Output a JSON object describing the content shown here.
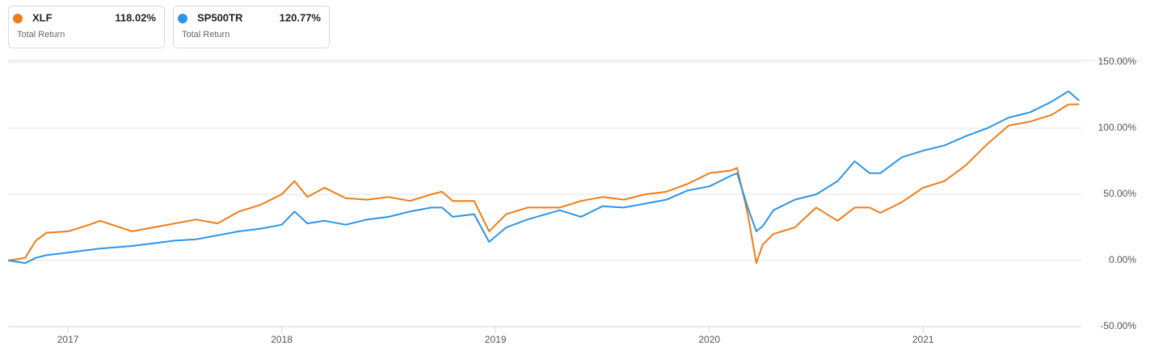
{
  "chart_data": {
    "type": "line",
    "x": [
      2016.72,
      2016.8,
      2016.85,
      2016.9,
      2017.0,
      2017.1,
      2017.15,
      2017.3,
      2017.4,
      2017.5,
      2017.6,
      2017.7,
      2017.8,
      2017.9,
      2018.0,
      2018.06,
      2018.12,
      2018.2,
      2018.3,
      2018.4,
      2018.5,
      2018.6,
      2018.7,
      2018.75,
      2018.8,
      2018.9,
      2018.97,
      2019.05,
      2019.15,
      2019.3,
      2019.4,
      2019.5,
      2019.6,
      2019.7,
      2019.8,
      2019.9,
      2020.0,
      2020.1,
      2020.13,
      2020.18,
      2020.22,
      2020.25,
      2020.3,
      2020.4,
      2020.5,
      2020.6,
      2020.68,
      2020.75,
      2020.8,
      2020.9,
      2021.0,
      2021.1,
      2021.2,
      2021.3,
      2021.4,
      2021.5,
      2021.6,
      2021.68,
      2021.73
    ],
    "series": [
      {
        "name": "XLF",
        "color": "#f07c17",
        "legend_value": "118.02%",
        "values": [
          0,
          2,
          15,
          21,
          22,
          27,
          30,
          22,
          25,
          28,
          31,
          28,
          37,
          42,
          50,
          60,
          48,
          55,
          47,
          46,
          48,
          45,
          50,
          52,
          45,
          45,
          22,
          35,
          40,
          40,
          45,
          48,
          46,
          50,
          52,
          58,
          66,
          68,
          70,
          35,
          -2,
          12,
          20,
          25,
          40,
          30,
          40,
          40,
          36,
          44,
          55,
          60,
          72,
          88,
          102,
          105,
          110,
          118,
          118.02
        ]
      },
      {
        "name": "SP500TR",
        "color": "#2b95e9",
        "legend_value": "120.77%",
        "values": [
          0,
          -2,
          2,
          4,
          6,
          8,
          9,
          11,
          13,
          15,
          16,
          19,
          22,
          24,
          27,
          37,
          28,
          30,
          27,
          31,
          33,
          37,
          40,
          40,
          33,
          35,
          14,
          25,
          31,
          38,
          33,
          41,
          40,
          43,
          46,
          53,
          56,
          64,
          66,
          40,
          22,
          26,
          38,
          46,
          50,
          60,
          75,
          66,
          66,
          78,
          83,
          87,
          94,
          100,
          108,
          112,
          120,
          128,
          120.77
        ]
      }
    ],
    "legend_subtitle": "Total Return",
    "xlim": [
      2016.72,
      2021.74
    ],
    "xticks": [
      2017,
      2018,
      2019,
      2020,
      2021
    ],
    "ylim": [
      -50,
      150
    ],
    "yticks": [
      {
        "value": -50,
        "label": "-50.00%"
      },
      {
        "value": 0,
        "label": "0.00%"
      },
      {
        "value": 50,
        "label": "50.00%"
      },
      {
        "value": 100,
        "label": "100.00%"
      },
      {
        "value": 150,
        "label": "150.00%"
      }
    ],
    "grid": true
  }
}
